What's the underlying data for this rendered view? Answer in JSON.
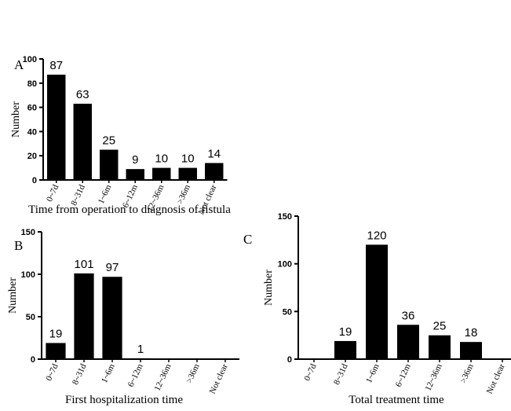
{
  "chart_data": [
    {
      "type": "bar",
      "panel": "A",
      "title": "Time from operation to diagnosis of fistula",
      "ylabel": "Number",
      "categories": [
        "0~7d",
        "8~31d",
        "1~6m",
        "6~12m",
        "12~36m",
        ">36m",
        "Not clear"
      ],
      "values": [
        87,
        63,
        25,
        9,
        10,
        10,
        14
      ],
      "color": "#000000",
      "ylim": [
        0,
        100
      ],
      "yticks": [
        0,
        20,
        40,
        60,
        80,
        100
      ]
    },
    {
      "type": "bar",
      "panel": "B",
      "title": "First hospitalization time",
      "ylabel": "Number",
      "categories": [
        "0~7d",
        "8~31d",
        "1~6m",
        "6~12m",
        "12~36m",
        ">36m",
        "Not clear"
      ],
      "values": [
        19,
        101,
        97,
        1,
        null,
        null,
        null
      ],
      "color": "#000000",
      "ylim": [
        0,
        150
      ],
      "yticks": [
        0,
        50,
        100,
        150
      ]
    },
    {
      "type": "bar",
      "panel": "C",
      "title": "Total treatment time",
      "ylabel": "Number",
      "categories": [
        "0~7d",
        "8~31d",
        "1~6m",
        "6~12m",
        "12~36m",
        ">36m",
        "Not clear"
      ],
      "values": [
        null,
        19,
        120,
        36,
        25,
        18,
        null
      ],
      "color": "#000000",
      "ylim": [
        0,
        150
      ],
      "yticks": [
        0,
        50,
        100,
        150
      ]
    }
  ]
}
